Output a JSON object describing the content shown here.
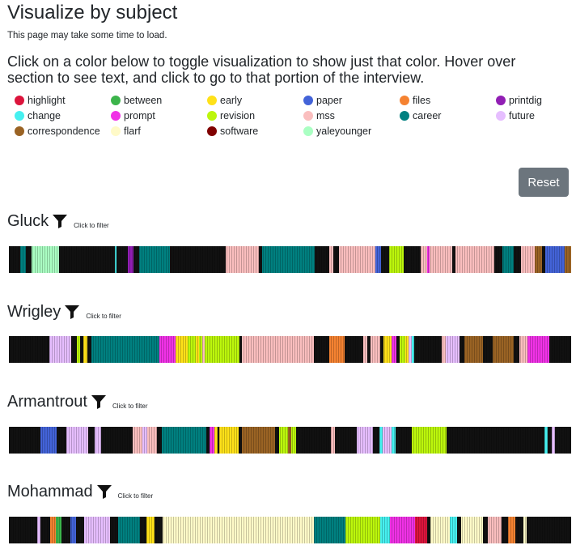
{
  "page": {
    "title": "Visualize by subject",
    "note": "This page may take some time to load.",
    "instructions": "Click on a color below to toggle visualization to show just that color. Hover over section to see text, and click to go to that portion of the interview."
  },
  "legend": [
    {
      "label": "highlight",
      "color": "#dc143c"
    },
    {
      "label": "between",
      "color": "#3cb44b"
    },
    {
      "label": "early",
      "color": "#ffe119"
    },
    {
      "label": "paper",
      "color": "#4363d8"
    },
    {
      "label": "files",
      "color": "#f58231"
    },
    {
      "label": "printdig",
      "color": "#911eb4"
    },
    {
      "label": "change",
      "color": "#46f0f0"
    },
    {
      "label": "prompt",
      "color": "#f032e6"
    },
    {
      "label": "revision",
      "color": "#bcf60c"
    },
    {
      "label": "mss",
      "color": "#fabebe"
    },
    {
      "label": "career",
      "color": "#008080"
    },
    {
      "label": "future",
      "color": "#e6beff"
    },
    {
      "label": "correspondence",
      "color": "#9a6324"
    },
    {
      "label": "flarf",
      "color": "#fffac8"
    },
    {
      "label": "software",
      "color": "#800000"
    },
    {
      "label": "yaleyounger",
      "color": "#aaffc3"
    }
  ],
  "reset_label": "Reset",
  "filter_hint": "Click to filter",
  "people": [
    {
      "name": "Gluck",
      "segments": [
        {
          "subject": "black",
          "share": 2
        },
        {
          "subject": "career",
          "share": 1
        },
        {
          "subject": "black",
          "share": 1
        },
        {
          "subject": "yaleyounger",
          "share": 5
        },
        {
          "subject": "black",
          "share": 10
        },
        {
          "subject": "change",
          "share": 0.4
        },
        {
          "subject": "black",
          "share": 2
        },
        {
          "subject": "printdig",
          "share": 1
        },
        {
          "subject": "black",
          "share": 1
        },
        {
          "subject": "career",
          "share": 5.5
        },
        {
          "subject": "black",
          "share": 10
        },
        {
          "subject": "mss",
          "share": 6
        },
        {
          "subject": "black",
          "share": 0.6
        },
        {
          "subject": "career",
          "share": 9.5
        },
        {
          "subject": "black",
          "share": 2.5
        },
        {
          "subject": "mss",
          "share": 0.8
        },
        {
          "subject": "black",
          "share": 1
        },
        {
          "subject": "mss",
          "share": 6.5
        },
        {
          "subject": "paper",
          "share": 1
        },
        {
          "subject": "black",
          "share": 1.5
        },
        {
          "subject": "revision",
          "share": 2.6
        },
        {
          "subject": "black",
          "share": 3
        },
        {
          "subject": "mss",
          "share": 1.3
        },
        {
          "subject": "prompt",
          "share": 0.4
        },
        {
          "subject": "mss",
          "share": 4
        },
        {
          "subject": "black",
          "share": 0.6
        },
        {
          "subject": "mss",
          "share": 7
        },
        {
          "subject": "black",
          "share": 1.5
        },
        {
          "subject": "career",
          "share": 2
        },
        {
          "subject": "black",
          "share": 1.3
        },
        {
          "subject": "mss",
          "share": 2.5
        },
        {
          "subject": "correspondence",
          "share": 1.2
        },
        {
          "subject": "black",
          "share": 0.6
        },
        {
          "subject": "paper",
          "share": 3.5
        },
        {
          "subject": "correspondence",
          "share": 1.2
        }
      ]
    },
    {
      "name": "Wrigley",
      "segments": [
        {
          "subject": "black",
          "share": 6.5
        },
        {
          "subject": "future",
          "share": 3.5
        },
        {
          "subject": "black",
          "share": 1
        },
        {
          "subject": "revision",
          "share": 0.5
        },
        {
          "subject": "black",
          "share": 0.5
        },
        {
          "subject": "early",
          "share": 0.6
        },
        {
          "subject": "black",
          "share": 0.7
        },
        {
          "subject": "career",
          "share": 11
        },
        {
          "subject": "prompt",
          "share": 2.5
        },
        {
          "subject": "early",
          "share": 2
        },
        {
          "subject": "revision",
          "share": 1.3
        },
        {
          "subject": "early",
          "share": 0.5
        },
        {
          "subject": "revision",
          "share": 0.6
        },
        {
          "subject": "mss",
          "share": 0.4
        },
        {
          "subject": "revision",
          "share": 5.5
        },
        {
          "subject": "black",
          "share": 0.5
        },
        {
          "subject": "mss",
          "share": 11.5
        },
        {
          "subject": "black",
          "share": 2.5
        },
        {
          "subject": "files",
          "share": 2.5
        },
        {
          "subject": "black",
          "share": 3
        },
        {
          "subject": "mss",
          "share": 0.6
        },
        {
          "subject": "black",
          "share": 0.6
        },
        {
          "subject": "mss",
          "share": 1.5
        },
        {
          "subject": "black",
          "share": 0.5
        },
        {
          "subject": "early",
          "share": 1.4
        },
        {
          "subject": "prompt",
          "share": 0.7
        },
        {
          "subject": "black",
          "share": 0.5
        },
        {
          "subject": "revision",
          "share": 1
        },
        {
          "subject": "early",
          "share": 0.5
        },
        {
          "subject": "future",
          "share": 0.5
        },
        {
          "subject": "change",
          "share": 0.4
        },
        {
          "subject": "black",
          "share": 4.5
        },
        {
          "subject": "mss",
          "share": 0.6
        },
        {
          "subject": "future",
          "share": 2.2
        },
        {
          "subject": "black",
          "share": 0.8
        },
        {
          "subject": "correspondence",
          "share": 3
        },
        {
          "subject": "black",
          "share": 1.5
        },
        {
          "subject": "correspondence",
          "share": 3.5
        },
        {
          "subject": "black",
          "share": 0.8
        },
        {
          "subject": "mss",
          "share": 1.4
        },
        {
          "subject": "prompt",
          "share": 3.5
        },
        {
          "subject": "black",
          "share": 3.5
        }
      ]
    },
    {
      "name": "Armantrout",
      "segments": [
        {
          "subject": "black",
          "share": 5
        },
        {
          "subject": "paper",
          "share": 2.5
        },
        {
          "subject": "black",
          "share": 1.5
        },
        {
          "subject": "future",
          "share": 3.5
        },
        {
          "subject": "black",
          "share": 1
        },
        {
          "subject": "future",
          "share": 1
        },
        {
          "subject": "black",
          "share": 5
        },
        {
          "subject": "mss",
          "share": 1.5
        },
        {
          "subject": "future",
          "share": 0.8
        },
        {
          "subject": "mss",
          "share": 1.5
        },
        {
          "subject": "black",
          "share": 0.8
        },
        {
          "subject": "career",
          "share": 7
        },
        {
          "subject": "black",
          "share": 0.5
        },
        {
          "subject": "prompt",
          "share": 0.8
        },
        {
          "subject": "early",
          "share": 0.5
        },
        {
          "subject": "black",
          "share": 0.3
        },
        {
          "subject": "early",
          "share": 3
        },
        {
          "subject": "black",
          "share": 0.6
        },
        {
          "subject": "correspondence",
          "share": 5.2
        },
        {
          "subject": "black",
          "share": 0.6
        },
        {
          "subject": "revision",
          "share": 1.4
        },
        {
          "subject": "correspondence",
          "share": 0.5
        },
        {
          "subject": "revision",
          "share": 0.8
        },
        {
          "subject": "black",
          "share": 5.5
        },
        {
          "subject": "mss",
          "share": 0.6
        },
        {
          "subject": "black",
          "share": 3.5
        },
        {
          "subject": "future",
          "share": 2.5
        },
        {
          "subject": "black",
          "share": 1
        },
        {
          "subject": "change",
          "share": 0.6
        },
        {
          "subject": "future",
          "share": 1.4
        },
        {
          "subject": "change",
          "share": 0.6
        },
        {
          "subject": "black",
          "share": 2.5
        },
        {
          "subject": "revision",
          "share": 5.5
        },
        {
          "subject": "black",
          "share": 15.5
        },
        {
          "subject": "change",
          "share": 0.5
        },
        {
          "subject": "black",
          "share": 0.6
        },
        {
          "subject": "future",
          "share": 0.6
        },
        {
          "subject": "black",
          "share": 2.5
        }
      ]
    },
    {
      "name": "Mohammad",
      "segments": [
        {
          "subject": "black",
          "share": 4.5
        },
        {
          "subject": "future",
          "share": 0.5
        },
        {
          "subject": "black",
          "share": 1.5
        },
        {
          "subject": "files",
          "share": 0.9
        },
        {
          "subject": "between",
          "share": 0.9
        },
        {
          "subject": "black",
          "share": 1.5
        },
        {
          "subject": "paper",
          "share": 0.8
        },
        {
          "subject": "black",
          "share": 1.4
        },
        {
          "subject": "future",
          "share": 4
        },
        {
          "subject": "black",
          "share": 1.3
        },
        {
          "subject": "career",
          "share": 3.5
        },
        {
          "subject": "black",
          "share": 1
        },
        {
          "subject": "early",
          "share": 1.3
        },
        {
          "subject": "black",
          "share": 1.3
        },
        {
          "subject": "flarf",
          "share": 24
        },
        {
          "subject": "career",
          "share": 5
        },
        {
          "subject": "revision",
          "share": 5.5
        },
        {
          "subject": "change",
          "share": 1.5
        },
        {
          "subject": "prompt",
          "share": 4
        },
        {
          "subject": "highlight",
          "share": 2
        },
        {
          "subject": "black",
          "share": 0.5
        },
        {
          "subject": "flarf",
          "share": 3
        },
        {
          "subject": "change",
          "share": 1.2
        },
        {
          "subject": "black",
          "share": 0.6
        },
        {
          "subject": "flarf",
          "share": 3.5
        },
        {
          "subject": "black",
          "share": 0.8
        },
        {
          "subject": "mss",
          "share": 2.2
        },
        {
          "subject": "black",
          "share": 1
        },
        {
          "subject": "files",
          "share": 1.2
        },
        {
          "subject": "black",
          "share": 1.2
        },
        {
          "subject": "flarf",
          "share": 0.6
        },
        {
          "subject": "black",
          "share": 7
        }
      ]
    }
  ]
}
